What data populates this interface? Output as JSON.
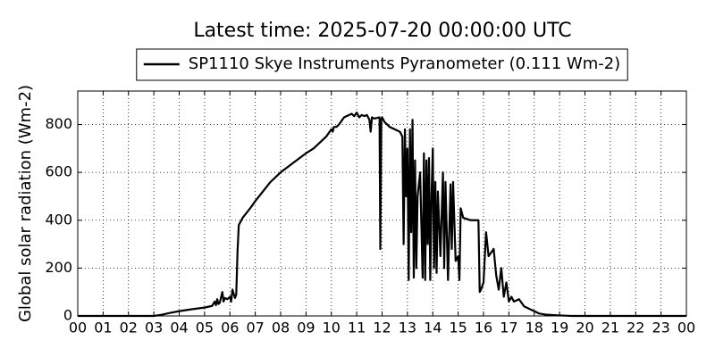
{
  "chart_data": {
    "type": "line",
    "title": "Latest time: 2025-07-20 00:00:00 UTC",
    "ylabel": "Global solar radiation (Wm-2)",
    "legend": "upper center",
    "grid": true,
    "xlim": [
      0,
      24
    ],
    "ylim": [
      0,
      940
    ],
    "yticks": [
      0,
      200,
      400,
      600,
      800
    ],
    "xticks": [
      {
        "value": 0,
        "label": "00"
      },
      {
        "value": 1,
        "label": "01"
      },
      {
        "value": 2,
        "label": "02"
      },
      {
        "value": 3,
        "label": "03"
      },
      {
        "value": 4,
        "label": "04"
      },
      {
        "value": 5,
        "label": "05"
      },
      {
        "value": 6,
        "label": "06"
      },
      {
        "value": 7,
        "label": "07"
      },
      {
        "value": 8,
        "label": "08"
      },
      {
        "value": 9,
        "label": "09"
      },
      {
        "value": 10,
        "label": "10"
      },
      {
        "value": 11,
        "label": "11"
      },
      {
        "value": 12,
        "label": "12"
      },
      {
        "value": 13,
        "label": "13"
      },
      {
        "value": 14,
        "label": "14"
      },
      {
        "value": 15,
        "label": "15"
      },
      {
        "value": 16,
        "label": "16"
      },
      {
        "value": 17,
        "label": "17"
      },
      {
        "value": 18,
        "label": "18"
      },
      {
        "value": 19,
        "label": "19"
      },
      {
        "value": 20,
        "label": "20"
      },
      {
        "value": 21,
        "label": "21"
      },
      {
        "value": 22,
        "label": "22"
      },
      {
        "value": 23,
        "label": "23"
      },
      {
        "value": 24,
        "label": "00"
      }
    ],
    "x": [
      0,
      1,
      2,
      3,
      3.3,
      3.6,
      4,
      4.5,
      5,
      5.3,
      5.4,
      5.45,
      5.5,
      5.55,
      5.6,
      5.7,
      5.75,
      5.8,
      5.9,
      6.0,
      6.05,
      6.1,
      6.2,
      6.25,
      6.3,
      6.35,
      6.5,
      6.8,
      7,
      7.3,
      7.6,
      8,
      8.5,
      9,
      9.3,
      9.6,
      9.8,
      10,
      10.05,
      10.1,
      10.2,
      10.3,
      10.5,
      10.8,
      10.9,
      11,
      11.1,
      11.2,
      11.3,
      11.4,
      11.5,
      11.55,
      11.6,
      11.7,
      11.9,
      11.93,
      11.97,
      12,
      12.1,
      12.3,
      12.5,
      12.7,
      12.8,
      12.85,
      12.9,
      12.95,
      13,
      13.05,
      13.1,
      13.15,
      13.2,
      13.25,
      13.3,
      13.35,
      13.4,
      13.5,
      13.6,
      13.65,
      13.7,
      13.75,
      13.8,
      13.85,
      13.9,
      13.95,
      14,
      14.05,
      14.1,
      14.15,
      14.2,
      14.3,
      14.4,
      14.45,
      14.5,
      14.6,
      14.7,
      14.75,
      14.8,
      14.9,
      15,
      15.05,
      15.1,
      15.2,
      15.5,
      15.8,
      15.85,
      15.9,
      16,
      16.1,
      16.2,
      16.4,
      16.5,
      16.6,
      16.7,
      16.8,
      16.9,
      17,
      17.1,
      17.2,
      17.4,
      17.6,
      17.8,
      18,
      18.2,
      18.5,
      19,
      19.5,
      20,
      22,
      24
    ],
    "series": [
      {
        "name": "SP1110 Skye Instruments Pyranometer (0.111 Wm-2)",
        "color": "#000000",
        "values": [
          0,
          0,
          0,
          0,
          5,
          12,
          20,
          28,
          35,
          42,
          60,
          45,
          70,
          50,
          55,
          100,
          60,
          75,
          70,
          80,
          60,
          110,
          75,
          90,
          270,
          380,
          410,
          450,
          480,
          520,
          560,
          600,
          640,
          680,
          700,
          730,
          750,
          780,
          770,
          790,
          790,
          800,
          830,
          845,
          835,
          850,
          830,
          840,
          835,
          840,
          820,
          770,
          830,
          825,
          830,
          280,
          820,
          830,
          810,
          790,
          780,
          770,
          750,
          300,
          780,
          500,
          700,
          150,
          780,
          350,
          820,
          160,
          650,
          200,
          500,
          600,
          160,
          680,
          150,
          650,
          300,
          660,
          150,
          500,
          700,
          200,
          560,
          180,
          520,
          250,
          600,
          200,
          560,
          150,
          550,
          280,
          560,
          230,
          250,
          150,
          450,
          410,
          400,
          400,
          100,
          110,
          140,
          350,
          250,
          280,
          170,
          110,
          200,
          80,
          140,
          60,
          80,
          60,
          70,
          40,
          30,
          20,
          10,
          5,
          2,
          0,
          0,
          0,
          0
        ]
      }
    ]
  }
}
